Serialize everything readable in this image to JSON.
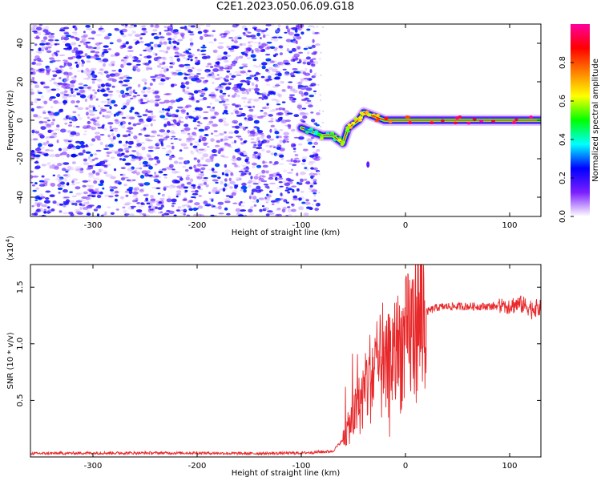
{
  "title": "C2E1.2023.050.06.09.G18",
  "chart_data": [
    {
      "type": "heatmap",
      "title": "C2E1.2023.050.06.09.G18",
      "xlabel": "Height of straight line (km)",
      "ylabel": "Frequency (Hz)",
      "xlim": [
        -360,
        130
      ],
      "ylim": [
        -50,
        50
      ],
      "x_ticks": [
        -300,
        -200,
        -100,
        0,
        100
      ],
      "y_ticks": [
        -40,
        -20,
        0,
        20,
        40
      ],
      "colorbar": {
        "label": "Normalized spectral amplitude",
        "range": [
          0,
          1
        ],
        "ticks": [
          0.0,
          0.2,
          0.4,
          0.6,
          0.8
        ],
        "colors": [
          "#ffffff",
          "#7b1fff",
          "#0000ff",
          "#00ffff",
          "#00ff00",
          "#ffff00",
          "#ff8000",
          "#ff0000",
          "#ff00a0"
        ]
      },
      "features": {
        "noise_region_x": [
          -360,
          -90
        ],
        "noise_amplitude_range": [
          0.0,
          0.25
        ],
        "signal_track": [
          {
            "x": -100,
            "y": -4,
            "amp": 0.3
          },
          {
            "x": -90,
            "y": -6,
            "amp": 0.4
          },
          {
            "x": -80,
            "y": -8,
            "amp": 0.5
          },
          {
            "x": -70,
            "y": -8,
            "amp": 0.5
          },
          {
            "x": -60,
            "y": -12,
            "amp": 0.6
          },
          {
            "x": -55,
            "y": -4,
            "amp": 0.6
          },
          {
            "x": -45,
            "y": 0,
            "amp": 0.6
          },
          {
            "x": -40,
            "y": 4,
            "amp": 0.6
          },
          {
            "x": -30,
            "y": 2,
            "amp": 0.7
          },
          {
            "x": -20,
            "y": 0,
            "amp": 0.8
          },
          {
            "x": 0,
            "y": 0,
            "amp": 0.9
          },
          {
            "x": 50,
            "y": 0,
            "amp": 1.0
          },
          {
            "x": 100,
            "y": 0,
            "amp": 1.0
          },
          {
            "x": 130,
            "y": 0,
            "amp": 1.0
          }
        ],
        "isolated_blob": {
          "x": -36,
          "y": -23,
          "amp": 0.15
        }
      }
    },
    {
      "type": "line",
      "xlabel": "Height of straight line (km)",
      "ylabel": "SNR (10 * v/v)",
      "y_multiplier": "(x10^4)",
      "y_multiplier_base": "(x10",
      "y_multiplier_exp": "4",
      "y_multiplier_close": ")",
      "xlim": [
        -360,
        130
      ],
      "ylim": [
        0,
        17000
      ],
      "x_ticks": [
        -300,
        -200,
        -100,
        0,
        100
      ],
      "y_ticks": [
        5000,
        10000,
        15000
      ],
      "y_tick_labels": [
        "0.5",
        "1.0",
        "1.5"
      ],
      "color": "#e8282a",
      "series": [
        {
          "x": [
            -360,
            -300,
            -250,
            -200,
            -150,
            -100,
            -70,
            -60,
            -50,
            -45,
            -40,
            -35,
            -30,
            -25,
            -20,
            -15,
            -10,
            -5,
            0,
            5,
            10,
            15,
            20,
            25,
            30,
            40,
            60,
            80,
            100,
            110,
            120,
            130
          ],
          "y": [
            300,
            350,
            350,
            350,
            300,
            350,
            500,
            1500,
            3500,
            4500,
            5500,
            7000,
            7500,
            8000,
            7000,
            8500,
            9000,
            9500,
            10000,
            11000,
            11800,
            12300,
            12800,
            13000,
            13200,
            13300,
            13300,
            13300,
            13400,
            13500,
            13200,
            13100
          ]
        }
      ]
    }
  ]
}
